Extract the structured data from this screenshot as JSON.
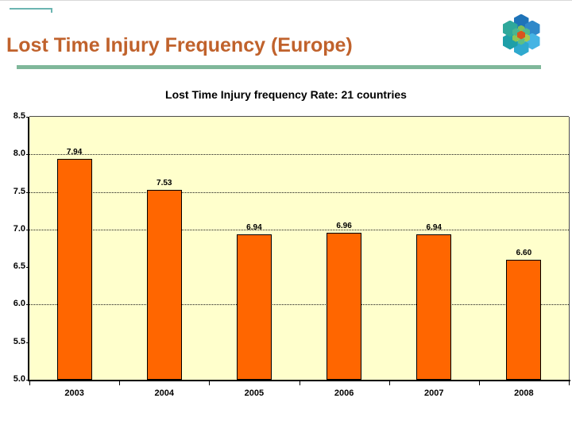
{
  "header": {
    "title": "Lost Time Injury Frequency (Europe)",
    "title_color": "#c0622c",
    "divider_color": "#7fb79a",
    "corner_accent_color": "#6cb5b1"
  },
  "logo": {
    "name": "hexagon-flower-logo",
    "outer_colors": [
      "#1e73b8",
      "#2f88c9",
      "#45b4e4",
      "#2fa9ce",
      "#1e9fa8",
      "#2fa89b"
    ],
    "inner_colors": [
      "#7fbe58",
      "#4fb98f",
      "#a5c94f",
      "#5fbe83",
      "#8cc455",
      "#49b490"
    ],
    "center_color": "#d9541e"
  },
  "chart_data": {
    "type": "bar",
    "title": "Lost Time Injury frequency Rate: 21 countries",
    "categories": [
      "2003",
      "2004",
      "2005",
      "2006",
      "2007",
      "2008"
    ],
    "values": [
      7.94,
      7.53,
      6.94,
      6.96,
      6.94,
      6.6
    ],
    "value_labels": [
      "7.94",
      "7.53",
      "6.94",
      "6.96",
      "6.94",
      "6.60"
    ],
    "xlabel": "",
    "ylabel": "",
    "ylim": [
      5.0,
      8.5
    ],
    "ytick_step": 0.5,
    "gridline_values": [
      8.0,
      7.5,
      7.0,
      6.0
    ],
    "gridline_style": "dotted",
    "legend": "none",
    "bar_color": "#ff6600",
    "bar_border_color": "#000000",
    "plot_bg_color": "#ffffcc"
  }
}
